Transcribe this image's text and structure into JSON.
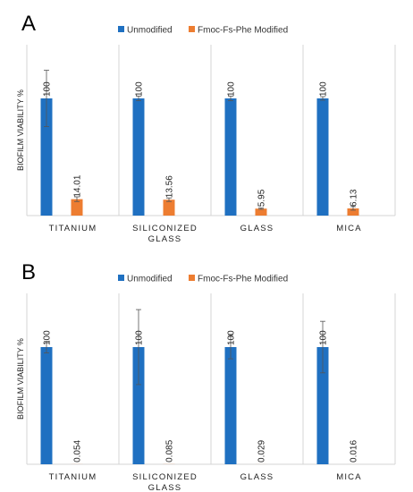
{
  "chart_data": [
    {
      "panel": "A",
      "type": "bar",
      "categories": [
        "TITANIUM",
        "SILICONIZED GLASS",
        "GLASS",
        "MICA"
      ],
      "category_lines": [
        [
          "TITANIUM"
        ],
        [
          "SILICONIZED",
          "GLASS"
        ],
        [
          "GLASS"
        ],
        [
          "MICA"
        ]
      ],
      "series": [
        {
          "name": "Unmodified",
          "color": "#1f70c1",
          "values": [
            100,
            100,
            100,
            100
          ],
          "errors": [
            24,
            2,
            2,
            1.5
          ],
          "labels": [
            "100",
            "100",
            "100",
            "100"
          ]
        },
        {
          "name": "Fmoc-Fs-Phe Modified",
          "color": "#ed7d31",
          "values": [
            14.01,
            13.56,
            5.95,
            6.13
          ],
          "errors": [
            2,
            1.5,
            0.6,
            1.5
          ],
          "labels": [
            "14.01",
            "13.56",
            "5.95",
            "6.13"
          ]
        }
      ],
      "ylabel": "BIOFILM VIABILITY %",
      "ylim": [
        0,
        140
      ],
      "legend_position": "top",
      "grid": false
    },
    {
      "panel": "B",
      "type": "bar",
      "categories": [
        "TITANIUM",
        "SILICONIZED GLASS",
        "GLASS",
        "MICA"
      ],
      "category_lines": [
        [
          "TITANIUM"
        ],
        [
          "SILICONIZED",
          "GLASS"
        ],
        [
          "GLASS"
        ],
        [
          "MICA"
        ]
      ],
      "series": [
        {
          "name": "Unmodified",
          "color": "#1f70c1",
          "values": [
            100,
            100,
            100,
            100
          ],
          "errors": [
            5,
            32,
            10,
            22
          ],
          "labels": [
            "100",
            "100",
            "100",
            "100"
          ]
        },
        {
          "name": "Fmoc-Fs-Phe Modified",
          "color": "#ed7d31",
          "values": [
            0.054,
            0.085,
            0.029,
            0.016
          ],
          "errors": [
            0,
            0,
            0,
            0
          ],
          "labels": [
            "0.054",
            "0.085",
            "0.029",
            "0.016"
          ]
        }
      ],
      "ylabel": "BIOFILM VIABILITY %",
      "ylim": [
        0,
        140
      ],
      "legend_position": "top",
      "grid": false
    }
  ]
}
